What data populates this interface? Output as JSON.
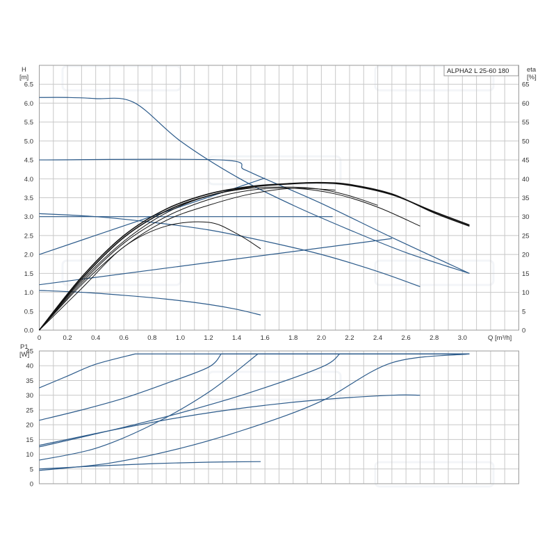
{
  "chart_data": [
    {
      "type": "line",
      "title": "ALPHA2 L 25-60 180",
      "xlabel": "Q [m³/h]",
      "ylabel": "H [m]",
      "ylabel_parts": [
        "H",
        "[m]"
      ],
      "y2label": "eta [%]",
      "y2label_parts": [
        "eta",
        "[%]"
      ],
      "xlim": [
        0,
        3.4
      ],
      "ylim": [
        0,
        7
      ],
      "y2lim": [
        0,
        70
      ],
      "grid": true,
      "x_ticks": [
        "0",
        "0.2",
        "0.4",
        "0.6",
        "0.8",
        "1.0",
        "1.2",
        "1.4",
        "1.6",
        "1.8",
        "2.0",
        "2.2",
        "2.4",
        "2.6",
        "2.8",
        "3.0"
      ],
      "y_ticks": [
        "0.0",
        "0.5",
        "1.0",
        "1.5",
        "2.0",
        "2.5",
        "3.0",
        "3.5",
        "4.0",
        "4.5",
        "5.0",
        "5.5",
        "6.0",
        "6.5"
      ],
      "y2_ticks": [
        "0",
        "5",
        "10",
        "15",
        "20",
        "25",
        "30",
        "35",
        "40",
        "45",
        "50",
        "55",
        "60",
        "65"
      ],
      "colors": {
        "head": "#2b5a8a",
        "eta": "#111111",
        "grid": "#c8c8c8"
      },
      "head_series": [
        {
          "x": [
            0,
            0.2,
            0.4,
            0.67,
            1.0,
            1.4,
            1.8,
            2.2,
            2.6,
            3.05
          ],
          "y": [
            6.15,
            6.15,
            6.12,
            6.02,
            5.0,
            4.05,
            3.3,
            2.65,
            2.05,
            1.5
          ]
        },
        {
          "x": [
            0,
            1.28,
            1.45,
            1.6,
            2.0,
            2.5,
            3.05
          ],
          "y": [
            4.5,
            4.5,
            4.25,
            4.0,
            3.35,
            2.45,
            1.5
          ]
        },
        {
          "x": [
            0,
            1.6
          ],
          "y": [
            2.0,
            4.02
          ]
        },
        {
          "x": [
            0,
            0.5,
            1.0,
            1.5,
            2.08
          ],
          "y": [
            3.0,
            3.0,
            3.0,
            3.0,
            3.0
          ]
        },
        {
          "x": [
            0,
            0.4,
            0.8,
            1.2,
            1.6,
            2.0,
            2.4,
            2.7
          ],
          "y": [
            3.08,
            3.0,
            2.85,
            2.65,
            2.35,
            2.0,
            1.55,
            1.15
          ]
        },
        {
          "x": [
            0,
            2.5
          ],
          "y": [
            1.2,
            2.42
          ]
        },
        {
          "x": [
            0,
            0.3,
            0.6,
            0.9,
            1.2,
            1.4,
            1.57
          ],
          "y": [
            1.05,
            1.0,
            0.92,
            0.82,
            0.68,
            0.55,
            0.4
          ]
        }
      ],
      "eta_series": [
        {
          "x": [
            0,
            0.3,
            0.6,
            0.9,
            1.2,
            1.5,
            1.8,
            2.0,
            2.2,
            2.5,
            2.8,
            3.05
          ],
          "y": [
            0,
            14,
            25,
            32,
            36,
            38,
            38.8,
            39,
            38.5,
            36,
            31,
            27.5
          ]
        },
        {
          "x": [
            0,
            0.3,
            0.6,
            0.9,
            1.2,
            1.5,
            1.8,
            2.0,
            2.2,
            2.5,
            2.8,
            3.05
          ],
          "y": [
            0,
            13.5,
            24.5,
            31.5,
            35.5,
            37.8,
            38.7,
            38.9,
            38.3,
            35.8,
            31.3,
            27.8
          ]
        },
        {
          "x": [
            0,
            0.3,
            0.6,
            0.9,
            1.2,
            1.5,
            1.8,
            2.0,
            2.2,
            2.4
          ],
          "y": [
            0,
            13,
            23.5,
            31,
            35.5,
            37.5,
            37.8,
            37.2,
            35.5,
            33
          ]
        },
        {
          "x": [
            0,
            0.3,
            0.6,
            0.9,
            1.2,
            1.5,
            1.8,
            2.1,
            2.4,
            2.7
          ],
          "y": [
            0,
            12.5,
            23,
            30,
            34.5,
            37,
            37.5,
            36,
            32.5,
            27.5
          ]
        },
        {
          "x": [
            0,
            0.3,
            0.6,
            0.9,
            1.2,
            1.5,
            1.8,
            2.1
          ],
          "y": [
            0,
            12,
            22,
            29,
            33,
            36,
            37.5,
            37
          ]
        },
        {
          "x": [
            0,
            0.3,
            0.6,
            0.9,
            1.2,
            1.4,
            1.57
          ],
          "y": [
            0,
            11,
            22,
            27.5,
            28.5,
            25.5,
            21.5
          ]
        }
      ]
    },
    {
      "type": "line",
      "xlabel": "",
      "ylabel": "P1 [W]",
      "ylabel_parts": [
        "P1",
        "[W]"
      ],
      "xlim": [
        0,
        3.4
      ],
      "ylim": [
        0,
        45
      ],
      "grid": true,
      "y_ticks": [
        "0",
        "5",
        "10",
        "15",
        "20",
        "25",
        "30",
        "35",
        "40",
        "45"
      ],
      "colors": {
        "power": "#2b5a8a",
        "grid": "#c8c8c8"
      },
      "power_series": [
        {
          "x": [
            0,
            0.2,
            0.4,
            0.68,
            3.05
          ],
          "y": [
            32.5,
            36.5,
            40.5,
            44,
            44
          ]
        },
        {
          "x": [
            0,
            0.3,
            0.6,
            0.9,
            1.2,
            1.29,
            3.05
          ],
          "y": [
            21.5,
            25,
            29,
            34,
            39.5,
            44,
            44
          ]
        },
        {
          "x": [
            0,
            0.4,
            0.8,
            1.2,
            1.55,
            3.05
          ],
          "y": [
            8,
            12,
            20,
            31,
            44,
            44
          ]
        },
        {
          "x": [
            0,
            0.5,
            1.0,
            1.5,
            2.0,
            2.13,
            3.05
          ],
          "y": [
            12.5,
            18,
            24,
            31,
            39.5,
            44,
            44
          ]
        },
        {
          "x": [
            0,
            0.5,
            1.0,
            1.5,
            2.0,
            2.5,
            3.05
          ],
          "y": [
            4.5,
            7,
            12,
            19,
            28,
            41,
            44
          ]
        },
        {
          "x": [
            0,
            0.5,
            1.0,
            1.5,
            2.0,
            2.5,
            2.7
          ],
          "y": [
            13,
            18,
            22.5,
            26,
            28.5,
            30,
            30
          ]
        },
        {
          "x": [
            0,
            0.4,
            0.8,
            1.2,
            1.57
          ],
          "y": [
            5,
            6,
            6.8,
            7.3,
            7.5
          ]
        }
      ]
    }
  ]
}
